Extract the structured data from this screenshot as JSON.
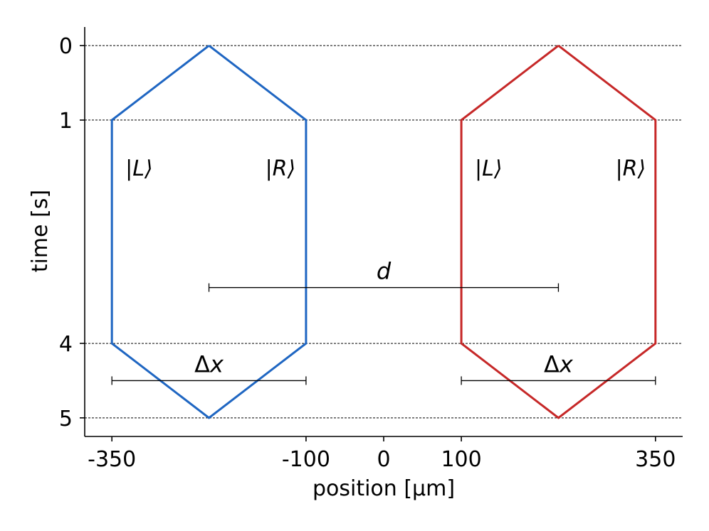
{
  "chart_data": {
    "type": "line",
    "xlabel": "position [μm]",
    "ylabel": "time [s]",
    "xlim": [
      -385,
      385
    ],
    "ylim": [
      5.25,
      -0.25
    ],
    "y_axis_inverted": true,
    "x_ticks": [
      -350,
      -100,
      0,
      100,
      350
    ],
    "x_tick_labels": [
      "-350",
      "-100",
      "0",
      "100",
      "350"
    ],
    "y_ticks": [
      0,
      1,
      4,
      5
    ],
    "y_tick_labels": [
      "0",
      "1",
      "4",
      "5"
    ],
    "grid": "dashed horizontal lines at y ticks",
    "series": [
      {
        "color": "#1f66c2",
        "x": [
          -225,
          -350,
          -350,
          -225,
          -100,
          -100,
          -225
        ],
        "y": [
          0,
          1,
          4,
          5,
          4,
          1,
          0
        ]
      },
      {
        "color": "#c62828",
        "x": [
          225,
          100,
          100,
          225,
          350,
          350,
          225
        ],
        "y": [
          0,
          1,
          4,
          5,
          4,
          1,
          0
        ]
      }
    ],
    "annotations": [
      {
        "text": "|L⟩",
        "x": -315,
        "y": 1.65
      },
      {
        "text": "|R⟩",
        "x": -133,
        "y": 1.65
      },
      {
        "text": "|L⟩",
        "x": 135,
        "y": 1.65
      },
      {
        "text": "|R⟩",
        "x": 318,
        "y": 1.65
      }
    ],
    "brackets": [
      {
        "label": "d",
        "x": [
          -225,
          225
        ],
        "y": 3.25
      },
      {
        "label": "Δx",
        "x": [
          -350,
          -100
        ],
        "y": 4.5
      },
      {
        "label": "Δx",
        "x": [
          100,
          350
        ],
        "y": 4.5
      }
    ]
  }
}
